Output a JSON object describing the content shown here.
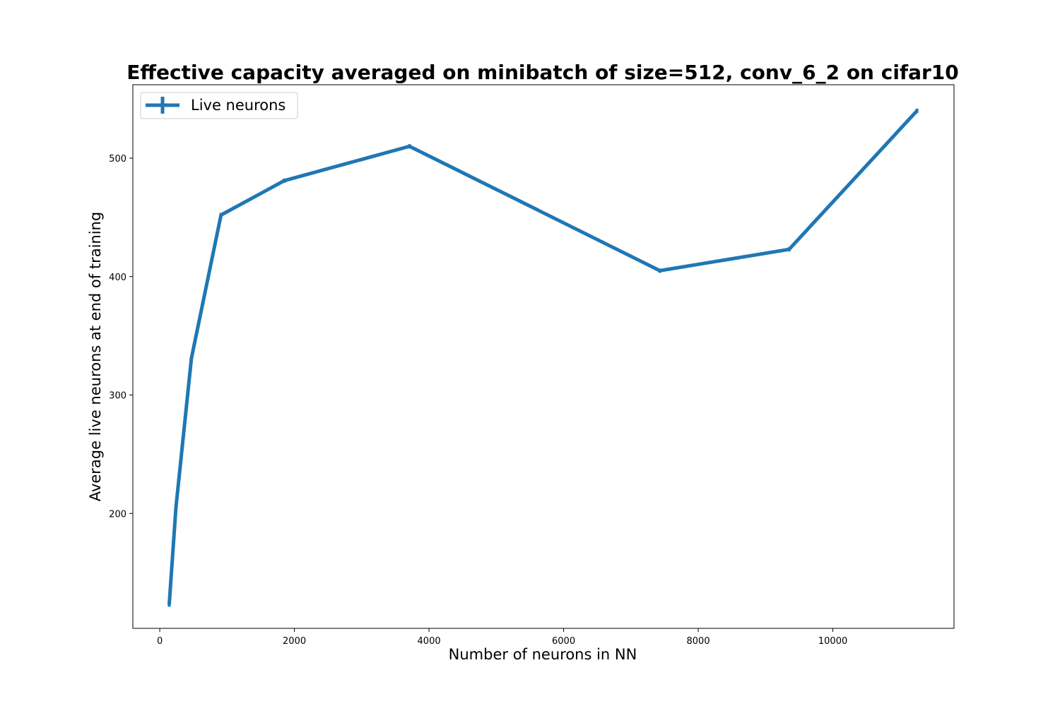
{
  "chart_data": {
    "type": "line",
    "title": "Effective capacity averaged on minibatch of size=512, conv_6_2 on cifar10",
    "xlabel": "Number of neurons in NN",
    "ylabel": "Average live neurons at end of training",
    "xlim": [
      -400,
      11800
    ],
    "ylim": [
      103,
      562
    ],
    "xticks": [
      0,
      2000,
      4000,
      6000,
      8000,
      10000
    ],
    "yticks": [
      200,
      300,
      400,
      500
    ],
    "grid": false,
    "legend": {
      "placement": "top-left",
      "entries": [
        "Live neurons"
      ]
    },
    "series": [
      {
        "name": "Live neurons",
        "color": "#1f77b4",
        "errorbars": true,
        "x": [
          140,
          240,
          470,
          910,
          1850,
          3710,
          7430,
          9350,
          11250
        ],
        "y": [
          123,
          205,
          331,
          452,
          481,
          510,
          405,
          423,
          540
        ]
      }
    ]
  }
}
